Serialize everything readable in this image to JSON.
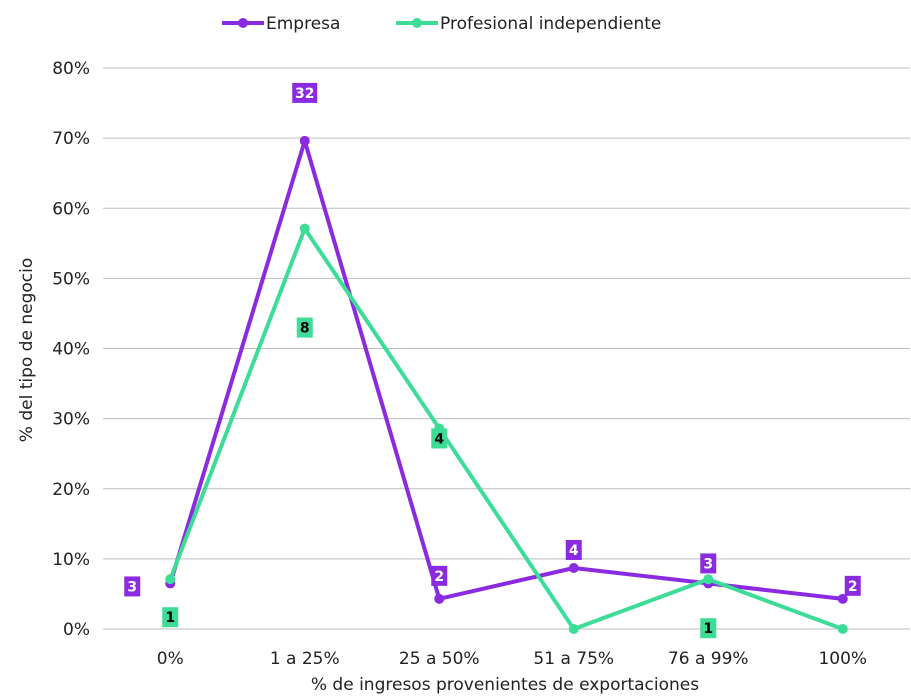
{
  "chart_data": {
    "type": "line",
    "categories": [
      "0%",
      "1 a 25%",
      "25 a 50%",
      "51 a 75%",
      "76 a 99%",
      "100%"
    ],
    "series": [
      {
        "name": "Empresa",
        "color": "#8a2be2",
        "values": [
          6.5,
          69.6,
          4.3,
          8.7,
          6.5,
          4.3
        ],
        "labels": [
          "3",
          "32",
          "2",
          "4",
          "3",
          "2"
        ]
      },
      {
        "name": "Profesional independiente",
        "color": "#3ddc97",
        "values": [
          7.1,
          57.1,
          28.6,
          0,
          7.1,
          0
        ],
        "labels": [
          "1",
          "8",
          "4",
          "",
          "1",
          ""
        ]
      }
    ],
    "xlabel": "% de ingresos provenientes de exportaciones",
    "ylabel": "% del tipo de negocio",
    "ylim": [
      0,
      80
    ],
    "yticks": [
      "0%",
      "10%",
      "20%",
      "30%",
      "40%",
      "50%",
      "60%",
      "70%",
      "80%"
    ],
    "grid": true,
    "legend_position": "top"
  }
}
